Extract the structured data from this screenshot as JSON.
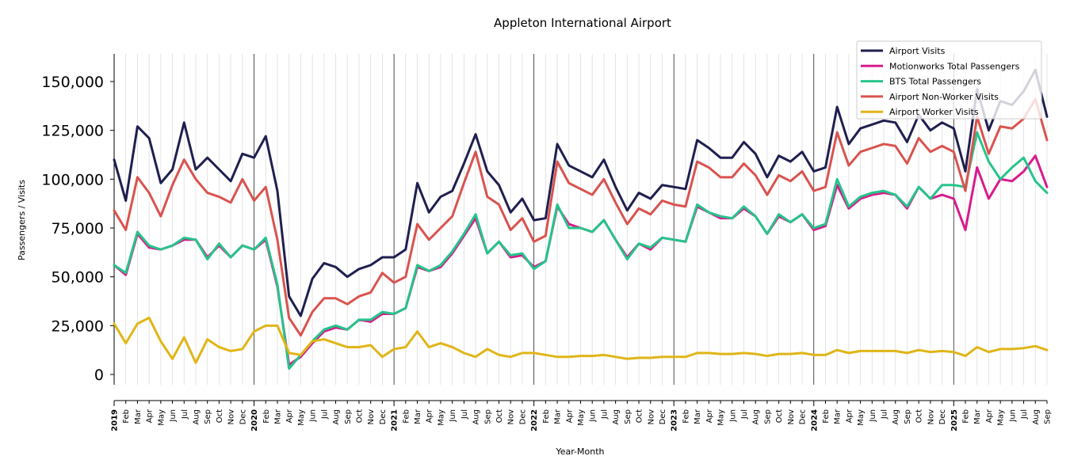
{
  "chart_data": {
    "type": "line",
    "title": "Appleton International Airport",
    "xlabel": "Year-Month",
    "ylabel": "Passengers / Visits",
    "ylim": [
      -5000,
      165000
    ],
    "yticks": [
      0,
      25000,
      50000,
      75000,
      100000,
      125000,
      150000
    ],
    "ytick_labels": [
      "0",
      "25,000",
      "50,000",
      "75,000",
      "100,000",
      "125,000",
      "150,000"
    ],
    "year_labels": [
      "2019",
      "2020",
      "2021",
      "2022",
      "2023",
      "2024",
      "2025"
    ],
    "month_labels": [
      "Feb",
      "Mar",
      "Apr",
      "May",
      "Jun",
      "Jul",
      "Aug",
      "Sep",
      "Oct",
      "Nov",
      "Dec"
    ],
    "last_month_label": "Sep",
    "legend_position": "top-right",
    "series": [
      {
        "name": "Airport Visits",
        "color": "#1f1f4f",
        "values": [
          110000,
          89000,
          127000,
          121000,
          98000,
          105000,
          129000,
          105000,
          111000,
          105000,
          99000,
          113000,
          111000,
          122000,
          94000,
          40000,
          30000,
          49000,
          57000,
          55000,
          50000,
          54000,
          56000,
          60000,
          60000,
          64000,
          98000,
          83000,
          91000,
          94000,
          108000,
          123000,
          104000,
          97000,
          83000,
          90000,
          79000,
          80000,
          118000,
          107000,
          104000,
          101000,
          110000,
          96000,
          84000,
          93000,
          90000,
          97000,
          96000,
          95000,
          120000,
          116000,
          111000,
          111000,
          119000,
          113000,
          101000,
          112000,
          109000,
          114000,
          104000,
          106000,
          137000,
          118000,
          126000,
          128000,
          130000,
          129000,
          119000,
          133000,
          125000,
          129000,
          126000,
          104000,
          146000,
          125000,
          140000,
          138000,
          145000,
          156000,
          132000
        ]
      },
      {
        "name": "Motionworks Total Passengers",
        "color": "#d81b8c",
        "values": [
          56000,
          51000,
          72000,
          65000,
          64000,
          66000,
          69000,
          69000,
          60000,
          66000,
          60000,
          66000,
          64000,
          69000,
          45000,
          5000,
          9000,
          16000,
          22000,
          24000,
          23000,
          28000,
          27000,
          31000,
          31000,
          34000,
          55000,
          53000,
          55000,
          62000,
          71000,
          80000,
          62000,
          68000,
          60000,
          61000,
          55000,
          58000,
          86000,
          77000,
          75000,
          73000,
          79000,
          69000,
          60000,
          67000,
          64000,
          70000,
          69000,
          68000,
          86000,
          83000,
          80000,
          80000,
          85000,
          81000,
          72000,
          81000,
          78000,
          82000,
          74000,
          76000,
          97000,
          85000,
          90000,
          92000,
          93000,
          92000,
          85000,
          96000,
          90000,
          92000,
          90000,
          74000,
          106000,
          90000,
          100000,
          99000,
          104000,
          112000,
          96000
        ]
      },
      {
        "name": "BTS Total Passengers",
        "color": "#26c48a",
        "values": [
          56000,
          52000,
          73000,
          66000,
          64000,
          66000,
          70000,
          69000,
          59000,
          67000,
          60000,
          66000,
          64000,
          70000,
          46000,
          3000,
          10000,
          17000,
          23000,
          25000,
          23000,
          28000,
          28000,
          32000,
          31000,
          34000,
          56000,
          53000,
          56000,
          63000,
          72000,
          82000,
          62000,
          68000,
          61000,
          62000,
          54000,
          58000,
          87000,
          75000,
          75000,
          73000,
          79000,
          69000,
          59000,
          67000,
          65000,
          70000,
          69000,
          68000,
          87000,
          83000,
          81000,
          80000,
          86000,
          81000,
          72000,
          82000,
          78000,
          82000,
          75000,
          77000,
          100000,
          86000,
          91000,
          93000,
          94000,
          92000,
          86000,
          96000,
          90000,
          97000,
          97000,
          96000,
          124000,
          109000,
          100000,
          106000,
          111000,
          99000,
          93000
        ]
      },
      {
        "name": "Airport Non-Worker Visits",
        "color": "#d9534f",
        "values": [
          84000,
          74000,
          101000,
          93000,
          81000,
          97000,
          110000,
          100000,
          93000,
          91000,
          88000,
          100000,
          89000,
          96000,
          69000,
          29000,
          20000,
          32000,
          39000,
          39000,
          36000,
          40000,
          42000,
          52000,
          47000,
          50000,
          77000,
          69000,
          75000,
          81000,
          98000,
          114000,
          91000,
          87000,
          74000,
          80000,
          68000,
          71000,
          109000,
          98000,
          95000,
          92000,
          100000,
          88000,
          77000,
          85000,
          82000,
          89000,
          87000,
          86000,
          109000,
          106000,
          101000,
          101000,
          108000,
          102000,
          92000,
          102000,
          99000,
          104000,
          94000,
          96000,
          124000,
          107000,
          114000,
          116000,
          118000,
          117000,
          108000,
          121000,
          114000,
          117000,
          114000,
          94000,
          132000,
          113000,
          127000,
          126000,
          131000,
          141000,
          120000
        ]
      },
      {
        "name": "Airport Worker Visits",
        "color": "#e0b517",
        "values": [
          26000,
          16000,
          26000,
          29000,
          17000,
          8000,
          19000,
          6000,
          18000,
          14000,
          12000,
          13000,
          22000,
          25000,
          25000,
          11000,
          10000,
          17000,
          18000,
          16000,
          14000,
          14000,
          15000,
          9000,
          13000,
          14000,
          22000,
          14000,
          16000,
          14000,
          11000,
          9000,
          13000,
          10000,
          9000,
          11000,
          11000,
          10000,
          9000,
          9000,
          9500,
          9500,
          10000,
          9000,
          8000,
          8500,
          8500,
          9000,
          9000,
          9000,
          11000,
          11000,
          10500,
          10500,
          11000,
          10500,
          9500,
          10500,
          10500,
          11000,
          10000,
          10000,
          12500,
          11000,
          12000,
          12000,
          12000,
          12000,
          11000,
          12500,
          11500,
          12000,
          11500,
          9500,
          14000,
          11500,
          13000,
          13000,
          13500,
          14500,
          12500
        ]
      }
    ]
  }
}
